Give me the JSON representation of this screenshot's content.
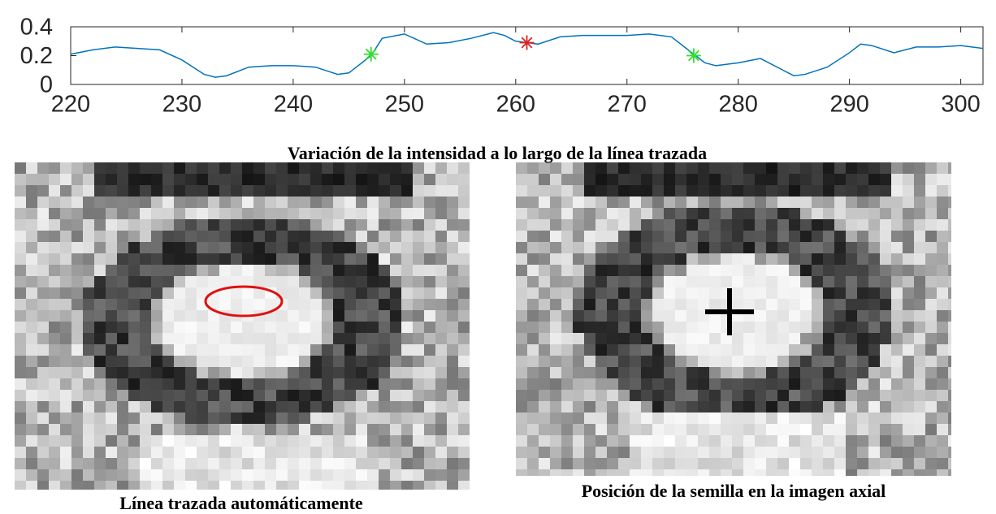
{
  "chart_data": {
    "type": "line",
    "x": [
      220,
      222,
      224,
      226,
      228,
      230,
      232,
      233,
      234,
      236,
      238,
      240,
      242,
      244,
      245,
      247,
      248,
      250,
      252,
      254,
      256,
      258,
      259,
      260,
      261,
      262,
      264,
      266,
      268,
      270,
      272,
      274,
      276,
      277,
      278,
      280,
      282,
      284,
      285,
      286,
      288,
      290,
      291,
      292,
      294,
      296,
      298,
      300,
      302
    ],
    "series": [
      {
        "color": "#0072bd",
        "values": [
          0.21,
          0.24,
          0.26,
          0.25,
          0.24,
          0.17,
          0.07,
          0.05,
          0.06,
          0.12,
          0.13,
          0.13,
          0.12,
          0.07,
          0.08,
          0.2,
          0.32,
          0.35,
          0.28,
          0.29,
          0.32,
          0.36,
          0.34,
          0.3,
          0.29,
          0.28,
          0.33,
          0.34,
          0.34,
          0.34,
          0.35,
          0.33,
          0.21,
          0.15,
          0.13,
          0.15,
          0.18,
          0.1,
          0.06,
          0.07,
          0.12,
          0.22,
          0.28,
          0.27,
          0.22,
          0.26,
          0.26,
          0.27,
          0.25
        ]
      }
    ],
    "markers": [
      {
        "x": 247,
        "y": 0.21,
        "color": "#33dd33"
      },
      {
        "x": 261,
        "y": 0.29,
        "color": "#dd2222"
      },
      {
        "x": 276,
        "y": 0.2,
        "color": "#33dd33"
      }
    ],
    "xlim": [
      220,
      302
    ],
    "ylim": [
      0,
      0.4
    ],
    "xticks": [
      220,
      230,
      240,
      250,
      260,
      270,
      280,
      290,
      300
    ],
    "yticks": [
      0,
      0.2,
      0.4
    ]
  },
  "figure_caption": "Variación de la intensidad a lo largo de la línea trazada",
  "images": [
    {
      "caption": "Línea trazada automáticamente"
    },
    {
      "caption": "Posición de la semilla en la imagen axial"
    }
  ]
}
